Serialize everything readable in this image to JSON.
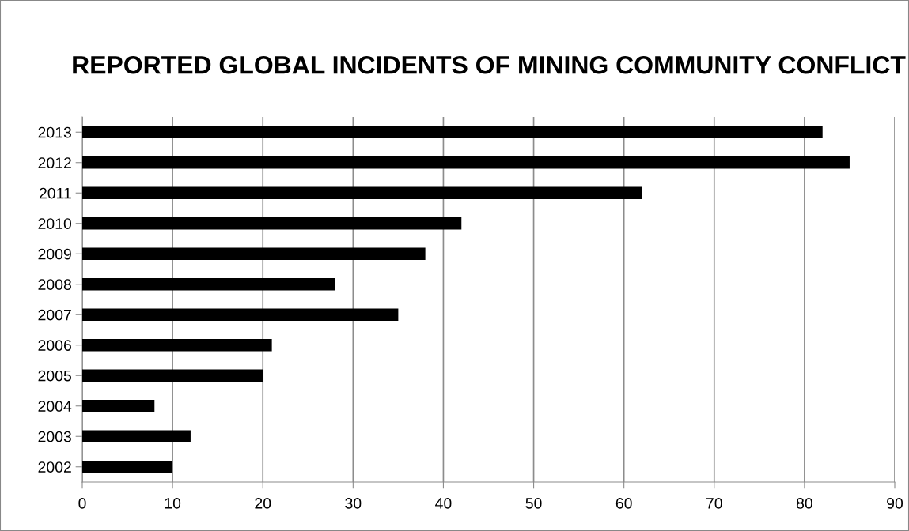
{
  "chart_data": {
    "type": "bar",
    "orientation": "horizontal",
    "title": "REPORTED GLOBAL INCIDENTS OF MINING COMMUNITY CONFLICT",
    "categories": [
      "2013",
      "2012",
      "2011",
      "2010",
      "2009",
      "2008",
      "2007",
      "2006",
      "2005",
      "2004",
      "2003",
      "2002"
    ],
    "values": [
      82,
      85,
      62,
      42,
      38,
      28,
      35,
      21,
      20,
      8,
      12,
      10
    ],
    "color": "#000000",
    "xlim": [
      0,
      90
    ],
    "xticks": [
      0,
      10,
      20,
      30,
      40,
      50,
      60,
      70,
      80,
      90
    ],
    "grid": "x",
    "legend": false
  }
}
